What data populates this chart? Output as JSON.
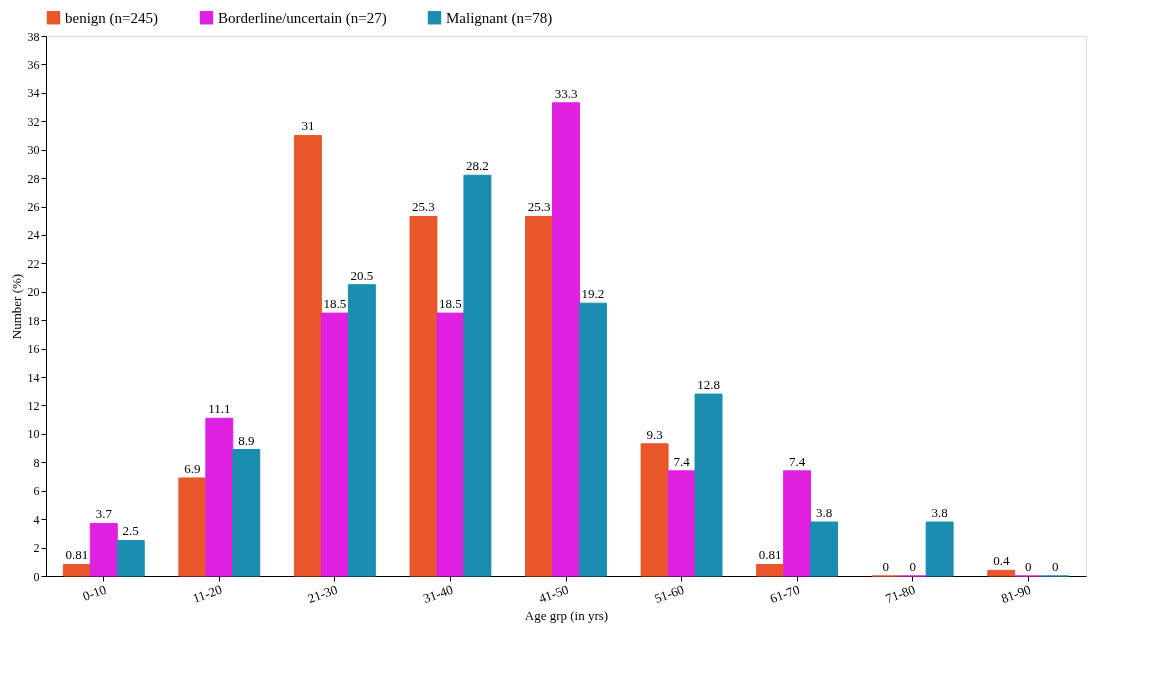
{
  "chart_data": {
    "type": "bar",
    "xlabel": "Age grp (in yrs)",
    "ylabel": "Number (%)",
    "categories": [
      "0-10",
      "11-20",
      "21-30",
      "31-40",
      "41-50",
      "51-60",
      "61-70",
      "71-80",
      "81-90"
    ],
    "series": [
      {
        "name": "benign (n=245)",
        "color": "#e8562a",
        "values": [
          0.81,
          6.9,
          31,
          25.3,
          25.3,
          9.3,
          0.81,
          0,
          0.4
        ]
      },
      {
        "name": "Borderline/uncertain (n=27)",
        "color": "#e020e0",
        "values": [
          3.7,
          11.1,
          18.5,
          18.5,
          33.3,
          7.4,
          7.4,
          0,
          0
        ]
      },
      {
        "name": "Malignant (n=78)",
        "color": "#1a8db0",
        "values": [
          2.5,
          8.9,
          20.5,
          28.2,
          19.2,
          12.8,
          3.8,
          3.8,
          0
        ]
      }
    ],
    "ylim": [
      0,
      38
    ],
    "yticks": [
      0,
      2,
      4,
      6,
      8,
      10,
      12,
      14,
      16,
      18,
      20,
      22,
      24,
      26,
      28,
      30,
      32,
      34,
      36,
      38
    ],
    "grid": false,
    "legend": "top left",
    "data_labels": true
  }
}
